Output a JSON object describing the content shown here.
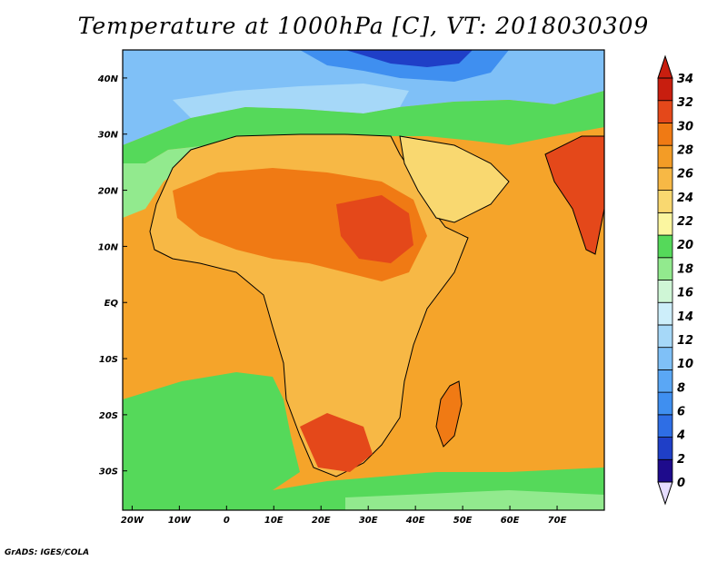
{
  "title": "Temperature at 1000hPa [C], VT: 2018030309",
  "credit": "GrADS: IGES/COLA",
  "map": {
    "lon_range": [
      -22,
      80
    ],
    "lat_range": [
      -37,
      45
    ],
    "lon_ticks": [
      {
        "value": -20,
        "label": "20W"
      },
      {
        "value": -10,
        "label": "10W"
      },
      {
        "value": 0,
        "label": "0"
      },
      {
        "value": 10,
        "label": "10E"
      },
      {
        "value": 20,
        "label": "20E"
      },
      {
        "value": 30,
        "label": "30E"
      },
      {
        "value": 40,
        "label": "40E"
      },
      {
        "value": 50,
        "label": "50E"
      },
      {
        "value": 60,
        "label": "60E"
      },
      {
        "value": 70,
        "label": "70E"
      }
    ],
    "lat_ticks": [
      {
        "value": 40,
        "label": "40N"
      },
      {
        "value": 30,
        "label": "30N"
      },
      {
        "value": 20,
        "label": "20N"
      },
      {
        "value": 10,
        "label": "10N"
      },
      {
        "value": 0,
        "label": "EQ"
      },
      {
        "value": -10,
        "label": "10S"
      },
      {
        "value": -20,
        "label": "20S"
      },
      {
        "value": -30,
        "label": "30S"
      }
    ],
    "ocean_color": "#f5a42a"
  },
  "colorbar": {
    "min": 0,
    "max": 34,
    "ticks": [
      "0",
      "2",
      "4",
      "6",
      "8",
      "10",
      "12",
      "14",
      "16",
      "18",
      "20",
      "22",
      "24",
      "26",
      "28",
      "30",
      "32",
      "34"
    ],
    "colors": [
      "#1e0b8c",
      "#1f3fc7",
      "#2e6ee5",
      "#3f8ff0",
      "#5aa7f5",
      "#7fc0f7",
      "#a6d8f8",
      "#cdeefa",
      "#cff6d6",
      "#92ea8e",
      "#55d95a",
      "#fbf6a0",
      "#f9d870",
      "#f7b845",
      "#f39c26",
      "#f07a14",
      "#e4481a",
      "#c81e0f"
    ],
    "over_color": "#c81e0f",
    "under_color": "#e6ddff"
  }
}
